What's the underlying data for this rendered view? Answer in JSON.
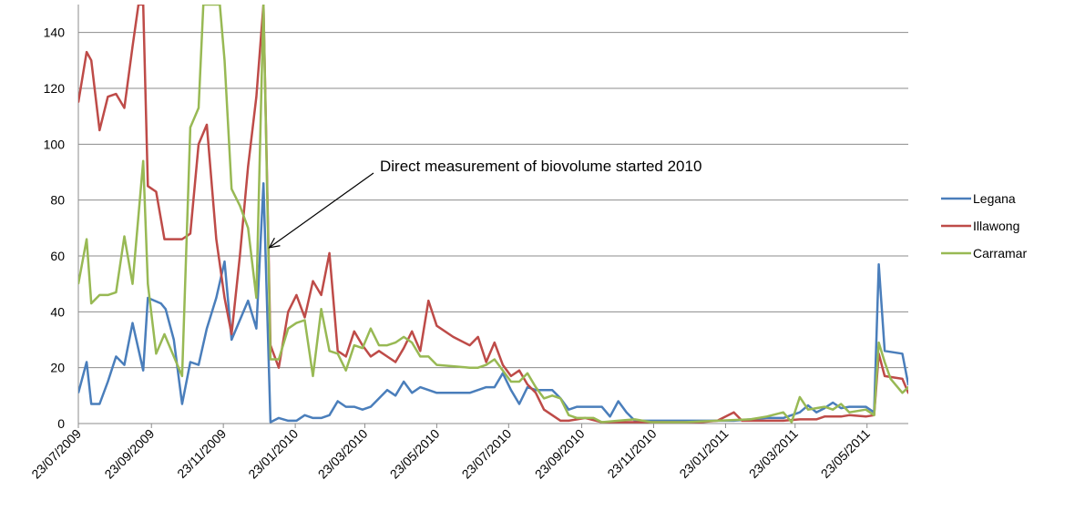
{
  "chart_data": {
    "type": "line",
    "title": "",
    "xlabel": "",
    "ylabel": "",
    "ylim": [
      0,
      150
    ],
    "y_ticks": [
      0,
      20,
      40,
      60,
      80,
      100,
      120,
      140
    ],
    "grid": true,
    "legend_position": "right",
    "x_tick_labels": [
      "23/07/2009",
      "23/09/2009",
      "23/11/2009",
      "23/01/2010",
      "23/03/2010",
      "23/05/2010",
      "23/07/2010",
      "23/09/2010",
      "23/11/2010",
      "23/01/2011",
      "23/03/2011",
      "23/05/2011"
    ],
    "x_range": [
      "2009-07-23",
      "2011-06-27"
    ],
    "annotation": {
      "text": "Direct measurement of biovolume started 2010",
      "points_to": {
        "date": "2010-01-01",
        "y": 63
      }
    },
    "series": [
      {
        "name": "Legana",
        "color": "#4a7ebb",
        "points": [
          [
            "2009-07-23",
            11
          ],
          [
            "2009-07-30",
            22
          ],
          [
            "2009-08-03",
            7
          ],
          [
            "2009-08-10",
            7
          ],
          [
            "2009-08-17",
            15
          ],
          [
            "2009-08-24",
            24
          ],
          [
            "2009-08-31",
            21
          ],
          [
            "2009-09-07",
            36
          ],
          [
            "2009-09-16",
            19
          ],
          [
            "2009-09-20",
            45
          ],
          [
            "2009-10-01",
            43
          ],
          [
            "2009-10-05",
            41
          ],
          [
            "2009-10-12",
            30
          ],
          [
            "2009-10-19",
            7
          ],
          [
            "2009-10-26",
            22
          ],
          [
            "2009-11-02",
            21
          ],
          [
            "2009-11-09",
            34
          ],
          [
            "2009-11-17",
            45
          ],
          [
            "2009-11-24",
            58
          ],
          [
            "2009-11-30",
            30
          ],
          [
            "2009-12-14",
            44
          ],
          [
            "2009-12-21",
            34
          ],
          [
            "2009-12-27",
            86
          ],
          [
            "2010-01-02",
            0.5
          ],
          [
            "2010-01-09",
            2
          ],
          [
            "2010-01-17",
            1
          ],
          [
            "2010-01-24",
            1
          ],
          [
            "2010-01-31",
            3
          ],
          [
            "2010-02-07",
            2
          ],
          [
            "2010-02-14",
            2
          ],
          [
            "2010-02-21",
            3
          ],
          [
            "2010-02-28",
            8
          ],
          [
            "2010-03-07",
            6
          ],
          [
            "2010-03-14",
            6
          ],
          [
            "2010-03-21",
            5
          ],
          [
            "2010-03-28",
            6
          ],
          [
            "2010-04-04",
            9
          ],
          [
            "2010-04-11",
            12
          ],
          [
            "2010-04-18",
            10
          ],
          [
            "2010-04-25",
            15
          ],
          [
            "2010-05-02",
            11
          ],
          [
            "2010-05-09",
            13
          ],
          [
            "2010-05-23",
            11
          ],
          [
            "2010-06-06",
            11
          ],
          [
            "2010-06-20",
            11
          ],
          [
            "2010-06-27",
            12
          ],
          [
            "2010-07-04",
            13
          ],
          [
            "2010-07-11",
            13
          ],
          [
            "2010-07-18",
            18
          ],
          [
            "2010-07-25",
            12
          ],
          [
            "2010-08-01",
            7
          ],
          [
            "2010-08-08",
            13
          ],
          [
            "2010-08-15",
            12
          ],
          [
            "2010-08-22",
            12
          ],
          [
            "2010-08-29",
            12
          ],
          [
            "2010-09-05",
            9
          ],
          [
            "2010-09-12",
            5
          ],
          [
            "2010-09-19",
            6
          ],
          [
            "2010-10-03",
            6
          ],
          [
            "2010-10-10",
            6
          ],
          [
            "2010-10-17",
            2.5
          ],
          [
            "2010-10-24",
            8
          ],
          [
            "2010-10-31",
            4
          ],
          [
            "2010-11-07",
            1
          ],
          [
            "2010-11-21",
            1
          ],
          [
            "2010-12-19",
            1
          ],
          [
            "2011-01-16",
            1
          ],
          [
            "2011-01-30",
            1
          ],
          [
            "2011-02-13",
            1.5
          ],
          [
            "2011-02-27",
            2
          ],
          [
            "2011-03-13",
            2
          ],
          [
            "2011-03-20",
            3
          ],
          [
            "2011-03-27",
            4
          ],
          [
            "2011-04-03",
            6.5
          ],
          [
            "2011-04-10",
            4
          ],
          [
            "2011-04-17",
            5.5
          ],
          [
            "2011-04-24",
            7.5
          ],
          [
            "2011-05-01",
            5.5
          ],
          [
            "2011-05-08",
            6
          ],
          [
            "2011-05-15",
            6
          ],
          [
            "2011-05-22",
            6
          ],
          [
            "2011-05-29",
            4
          ],
          [
            "2011-06-02",
            57
          ],
          [
            "2011-06-07",
            26
          ],
          [
            "2011-06-22",
            25
          ],
          [
            "2011-06-27",
            14
          ],
          [
            "2011-07-01",
            15
          ]
        ]
      },
      {
        "name": "Illawong",
        "color": "#be4b48",
        "points": [
          [
            "2009-07-23",
            115
          ],
          [
            "2009-07-30",
            133
          ],
          [
            "2009-08-03",
            130
          ],
          [
            "2009-08-10",
            105
          ],
          [
            "2009-08-17",
            117
          ],
          [
            "2009-08-24",
            118
          ],
          [
            "2009-08-31",
            113
          ],
          [
            "2009-09-07",
            135
          ],
          [
            "2009-09-12",
            150
          ],
          [
            "2009-09-16",
            150
          ],
          [
            "2009-09-20",
            85
          ],
          [
            "2009-09-27",
            83
          ],
          [
            "2009-10-04",
            66
          ],
          [
            "2009-10-19",
            66
          ],
          [
            "2009-10-26",
            68
          ],
          [
            "2009-11-02",
            100
          ],
          [
            "2009-11-09",
            107
          ],
          [
            "2009-11-17",
            66
          ],
          [
            "2009-11-24",
            45
          ],
          [
            "2009-11-30",
            32
          ],
          [
            "2009-12-07",
            60
          ],
          [
            "2009-12-14",
            92
          ],
          [
            "2009-12-21",
            117
          ],
          [
            "2009-12-27",
            150
          ],
          [
            "2010-01-02",
            28
          ],
          [
            "2010-01-09",
            20
          ],
          [
            "2010-01-17",
            40
          ],
          [
            "2010-01-24",
            46
          ],
          [
            "2010-01-31",
            38
          ],
          [
            "2010-02-07",
            51
          ],
          [
            "2010-02-14",
            46
          ],
          [
            "2010-02-21",
            61
          ],
          [
            "2010-02-28",
            26
          ],
          [
            "2010-03-07",
            24
          ],
          [
            "2010-03-14",
            33
          ],
          [
            "2010-03-21",
            28
          ],
          [
            "2010-03-28",
            24
          ],
          [
            "2010-04-04",
            26
          ],
          [
            "2010-04-11",
            24
          ],
          [
            "2010-04-18",
            22
          ],
          [
            "2010-04-25",
            27
          ],
          [
            "2010-05-02",
            33
          ],
          [
            "2010-05-09",
            26
          ],
          [
            "2010-05-16",
            44
          ],
          [
            "2010-05-23",
            35
          ],
          [
            "2010-06-06",
            31
          ],
          [
            "2010-06-20",
            28
          ],
          [
            "2010-06-27",
            31
          ],
          [
            "2010-07-04",
            22
          ],
          [
            "2010-07-11",
            29
          ],
          [
            "2010-07-18",
            21
          ],
          [
            "2010-07-25",
            17
          ],
          [
            "2010-08-01",
            19
          ],
          [
            "2010-08-08",
            14
          ],
          [
            "2010-08-15",
            11
          ],
          [
            "2010-08-22",
            5
          ],
          [
            "2010-08-29",
            3
          ],
          [
            "2010-09-05",
            1
          ],
          [
            "2010-09-12",
            1
          ],
          [
            "2010-09-26",
            2
          ],
          [
            "2010-10-10",
            0.5
          ],
          [
            "2010-10-24",
            0.5
          ],
          [
            "2010-11-07",
            0.5
          ],
          [
            "2010-11-21",
            0.5
          ],
          [
            "2010-12-19",
            0.5
          ],
          [
            "2011-01-02",
            0.5
          ],
          [
            "2011-01-16",
            1
          ],
          [
            "2011-01-30",
            4
          ],
          [
            "2011-02-06",
            1
          ],
          [
            "2011-02-27",
            1
          ],
          [
            "2011-03-13",
            1
          ],
          [
            "2011-03-27",
            1.5
          ],
          [
            "2011-04-03",
            1.5
          ],
          [
            "2011-04-10",
            1.5
          ],
          [
            "2011-04-17",
            2.5
          ],
          [
            "2011-05-01",
            2.5
          ],
          [
            "2011-05-08",
            3
          ],
          [
            "2011-05-22",
            2.5
          ],
          [
            "2011-05-29",
            3
          ],
          [
            "2011-06-02",
            25
          ],
          [
            "2011-06-07",
            17
          ],
          [
            "2011-06-22",
            16
          ],
          [
            "2011-06-27",
            11
          ],
          [
            "2011-07-01",
            11
          ]
        ]
      },
      {
        "name": "Carramar",
        "color": "#98b954",
        "points": [
          [
            "2009-07-23",
            50
          ],
          [
            "2009-07-30",
            66
          ],
          [
            "2009-08-03",
            43
          ],
          [
            "2009-08-10",
            46
          ],
          [
            "2009-08-17",
            46
          ],
          [
            "2009-08-24",
            47
          ],
          [
            "2009-08-31",
            67
          ],
          [
            "2009-09-07",
            50
          ],
          [
            "2009-09-16",
            94
          ],
          [
            "2009-09-20",
            50
          ],
          [
            "2009-09-27",
            25
          ],
          [
            "2009-10-04",
            32
          ],
          [
            "2009-10-11",
            25
          ],
          [
            "2009-10-19",
            17
          ],
          [
            "2009-10-26",
            106
          ],
          [
            "2009-11-02",
            113
          ],
          [
            "2009-11-06",
            150
          ],
          [
            "2009-11-20",
            150
          ],
          [
            "2009-11-24",
            130
          ],
          [
            "2009-11-30",
            84
          ],
          [
            "2009-12-07",
            78
          ],
          [
            "2009-12-14",
            70
          ],
          [
            "2009-12-21",
            45
          ],
          [
            "2009-12-27",
            150
          ],
          [
            "2010-01-02",
            23
          ],
          [
            "2010-01-09",
            23
          ],
          [
            "2010-01-17",
            34
          ],
          [
            "2010-01-24",
            36
          ],
          [
            "2010-01-31",
            37
          ],
          [
            "2010-02-07",
            17
          ],
          [
            "2010-02-14",
            41
          ],
          [
            "2010-02-21",
            26
          ],
          [
            "2010-02-28",
            25
          ],
          [
            "2010-03-07",
            19
          ],
          [
            "2010-03-14",
            28
          ],
          [
            "2010-03-21",
            27
          ],
          [
            "2010-03-28",
            34
          ],
          [
            "2010-04-04",
            28
          ],
          [
            "2010-04-11",
            28
          ],
          [
            "2010-04-18",
            29
          ],
          [
            "2010-04-25",
            31
          ],
          [
            "2010-05-02",
            29
          ],
          [
            "2010-05-09",
            24
          ],
          [
            "2010-05-16",
            24
          ],
          [
            "2010-05-23",
            21
          ],
          [
            "2010-06-06",
            20.5
          ],
          [
            "2010-06-20",
            20
          ],
          [
            "2010-06-27",
            20
          ],
          [
            "2010-07-04",
            21
          ],
          [
            "2010-07-11",
            23
          ],
          [
            "2010-07-18",
            19
          ],
          [
            "2010-07-25",
            15
          ],
          [
            "2010-08-01",
            15
          ],
          [
            "2010-08-08",
            18
          ],
          [
            "2010-08-15",
            13
          ],
          [
            "2010-08-22",
            9
          ],
          [
            "2010-08-29",
            10
          ],
          [
            "2010-09-05",
            9
          ],
          [
            "2010-09-12",
            3
          ],
          [
            "2010-09-19",
            2
          ],
          [
            "2010-10-03",
            2
          ],
          [
            "2010-10-10",
            0.5
          ],
          [
            "2010-10-24",
            1
          ],
          [
            "2010-11-07",
            1.5
          ],
          [
            "2010-11-21",
            0.5
          ],
          [
            "2010-12-19",
            0.5
          ],
          [
            "2011-01-16",
            1
          ],
          [
            "2011-02-13",
            1.5
          ],
          [
            "2011-02-27",
            2.5
          ],
          [
            "2011-03-13",
            4
          ],
          [
            "2011-03-20",
            0.5
          ],
          [
            "2011-03-27",
            9.5
          ],
          [
            "2011-04-03",
            5
          ],
          [
            "2011-04-10",
            5.5
          ],
          [
            "2011-04-17",
            6
          ],
          [
            "2011-04-24",
            5
          ],
          [
            "2011-05-01",
            7
          ],
          [
            "2011-05-08",
            4
          ],
          [
            "2011-05-22",
            5
          ],
          [
            "2011-05-29",
            3
          ],
          [
            "2011-06-02",
            29
          ],
          [
            "2011-06-07",
            22
          ],
          [
            "2011-06-12",
            16
          ],
          [
            "2011-06-22",
            11
          ],
          [
            "2011-06-27",
            13
          ],
          [
            "2011-07-01",
            12
          ]
        ]
      }
    ]
  }
}
